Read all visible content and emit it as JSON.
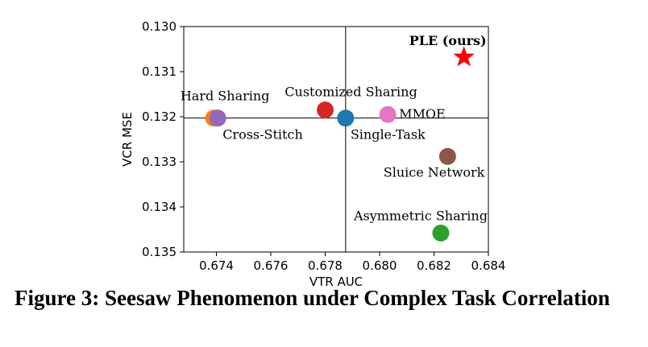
{
  "chart_data": {
    "type": "scatter",
    "xlabel": "VTR AUC",
    "ylabel": "VCR MSE",
    "xlim": [
      0.6728,
      0.684
    ],
    "ylim": [
      0.135,
      0.13
    ],
    "y_inverted": true,
    "xticks": [
      0.674,
      0.676,
      0.678,
      0.68,
      0.682,
      0.684
    ],
    "xtick_labels": [
      "0.674",
      "0.676",
      "0.678",
      "0.680",
      "0.682",
      "0.684"
    ],
    "yticks": [
      0.13,
      0.131,
      0.132,
      0.133,
      0.134,
      0.135
    ],
    "ytick_labels": [
      "0.130",
      "0.131",
      "0.132",
      "0.133",
      "0.134",
      "0.135"
    ],
    "reference_lines": {
      "x": 0.67875,
      "y": 0.13203
    },
    "grid": false,
    "points": [
      {
        "label": "Hard Sharing",
        "x": 0.6739,
        "y": 0.13203,
        "color": "#ff7f0e",
        "marker": "circle",
        "label_pos": "above"
      },
      {
        "label": "Cross-Stitch",
        "x": 0.67405,
        "y": 0.13203,
        "color": "#9467bd",
        "marker": "circle",
        "label_pos": "below-right"
      },
      {
        "label": "Customized Sharing",
        "x": 0.678,
        "y": 0.13185,
        "color": "#d62728",
        "marker": "circle",
        "label_pos": "above"
      },
      {
        "label": "Single-Task",
        "x": 0.67875,
        "y": 0.13203,
        "color": "#1f77b4",
        "marker": "circle",
        "label_pos": "below-right"
      },
      {
        "label": "MMOE",
        "x": 0.6803,
        "y": 0.13195,
        "color": "#e377c2",
        "marker": "circle",
        "label_pos": "right"
      },
      {
        "label": "Sluice Network",
        "x": 0.6825,
        "y": 0.13288,
        "color": "#8c564b",
        "marker": "circle",
        "label_pos": "below-left"
      },
      {
        "label": "Asymmetric Sharing",
        "x": 0.68225,
        "y": 0.13458,
        "color": "#2ca02c",
        "marker": "circle",
        "label_pos": "above-left"
      },
      {
        "label": "PLE (ours)",
        "x": 0.6831,
        "y": 0.13068,
        "color": "#ff0000",
        "marker": "star",
        "label_pos": "above-left",
        "bold": true
      }
    ]
  },
  "caption": "Figure 3: Seesaw Phenomenon under Complex Task Correlation"
}
